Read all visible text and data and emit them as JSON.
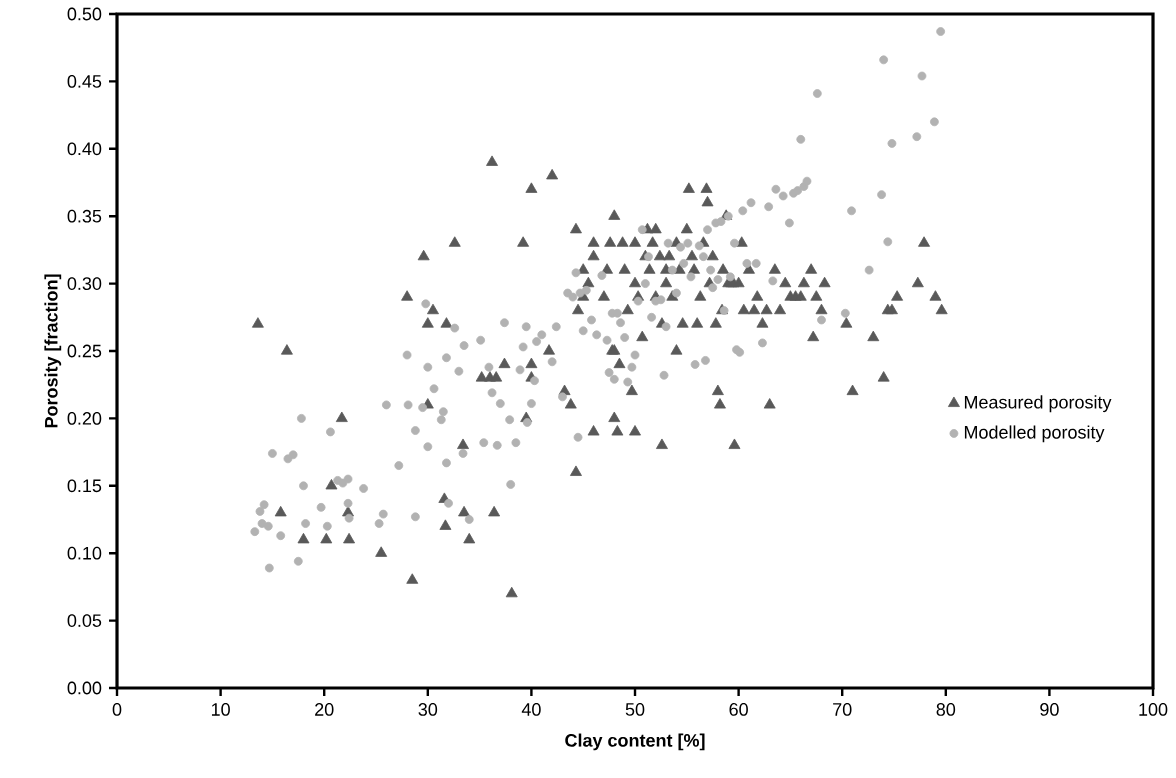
{
  "chart_data": {
    "type": "scatter",
    "xlabel": "Clay content [%]",
    "ylabel": "Porosity [fraction]",
    "xlim": [
      0,
      100
    ],
    "xticks": [
      0,
      10,
      20,
      30,
      40,
      50,
      60,
      70,
      80,
      90,
      100
    ],
    "ylim": [
      0,
      0.5
    ],
    "yticks": [
      {
        "value": 0,
        "label": "0.00"
      },
      {
        "value": 0.05,
        "label": "0.05"
      },
      {
        "value": 0.1,
        "label": "0.10"
      },
      {
        "value": 0.15,
        "label": "0.15"
      },
      {
        "value": 0.2,
        "label": "0.20"
      },
      {
        "value": 0.25,
        "label": "0.25"
      },
      {
        "value": 0.3,
        "label": "0.30"
      },
      {
        "value": 0.35,
        "label": "0.35"
      },
      {
        "value": 0.4,
        "label": "0.40"
      },
      {
        "value": 0.45,
        "label": "0.45"
      },
      {
        "value": 0.5,
        "label": "0.50"
      }
    ],
    "grid": false,
    "legend": "right",
    "series": [
      {
        "name": "Measured porosity",
        "color": "#595959",
        "marker": "triangle",
        "x": [
          13.6,
          15.8,
          16.4,
          18,
          20.2,
          20.7,
          21.7,
          22.3,
          22.4,
          25.5,
          28,
          28.5,
          29.6,
          30,
          30,
          30.5,
          31.6,
          31.7,
          31.8,
          32.6,
          33.4,
          33.5,
          34,
          35.2,
          36,
          36.2,
          36.4,
          36.6,
          37.4,
          38.1,
          39.2,
          39.5,
          40,
          40,
          40,
          42,
          41.7,
          43.2,
          43.8,
          44.3,
          44.3,
          44.5,
          45,
          45,
          45.5,
          46,
          46,
          46,
          47,
          47.3,
          47.6,
          47.8,
          48,
          48,
          48,
          48.3,
          48.5,
          48.8,
          49,
          49.3,
          49.7,
          50,
          50,
          50,
          50.3,
          50.7,
          51,
          51.2,
          51.4,
          51.7,
          52,
          52,
          52.4,
          52.6,
          52.6,
          53,
          53,
          53.3,
          53.6,
          54,
          54,
          54.3,
          54.6,
          55,
          55.2,
          55.5,
          55.7,
          56,
          56.3,
          56.6,
          56.9,
          57,
          57.2,
          57.5,
          57.8,
          58,
          58.2,
          58.4,
          58.5,
          58.8,
          59,
          59.3,
          59.5,
          59.6,
          60,
          60.3,
          60.5,
          61,
          61.5,
          61.8,
          62.3,
          62.7,
          63,
          63.5,
          64,
          64.5,
          65,
          65.5,
          66,
          66.3,
          67,
          67.2,
          67.5,
          68,
          68.3,
          70.4,
          71,
          73,
          74,
          74.4,
          74.8,
          75.3,
          77.3,
          77.9,
          79,
          79.6
        ],
        "values": [
          0.27,
          0.13,
          0.25,
          0.11,
          0.11,
          0.15,
          0.2,
          0.13,
          0.11,
          0.1,
          0.29,
          0.08,
          0.32,
          0.27,
          0.21,
          0.28,
          0.14,
          0.12,
          0.27,
          0.33,
          0.18,
          0.13,
          0.11,
          0.23,
          0.23,
          0.39,
          0.13,
          0.23,
          0.24,
          0.07,
          0.33,
          0.2,
          0.37,
          0.23,
          0.24,
          0.38,
          0.25,
          0.22,
          0.21,
          0.34,
          0.16,
          0.28,
          0.31,
          0.29,
          0.3,
          0.19,
          0.32,
          0.33,
          0.29,
          0.31,
          0.33,
          0.25,
          0.35,
          0.2,
          0.25,
          0.19,
          0.24,
          0.33,
          0.31,
          0.28,
          0.22,
          0.19,
          0.33,
          0.3,
          0.29,
          0.26,
          0.32,
          0.34,
          0.31,
          0.33,
          0.29,
          0.34,
          0.32,
          0.27,
          0.18,
          0.31,
          0.3,
          0.32,
          0.29,
          0.33,
          0.25,
          0.31,
          0.27,
          0.34,
          0.37,
          0.32,
          0.31,
          0.27,
          0.29,
          0.33,
          0.37,
          0.36,
          0.3,
          0.32,
          0.27,
          0.22,
          0.21,
          0.28,
          0.31,
          0.35,
          0.3,
          0.3,
          0.3,
          0.18,
          0.3,
          0.33,
          0.28,
          0.31,
          0.28,
          0.29,
          0.27,
          0.28,
          0.21,
          0.31,
          0.28,
          0.3,
          0.29,
          0.29,
          0.29,
          0.3,
          0.31,
          0.26,
          0.29,
          0.28,
          0.3,
          0.27,
          0.22,
          0.26,
          0.23,
          0.28,
          0.28,
          0.29,
          0.3,
          0.33,
          0.29,
          0.28
        ]
      },
      {
        "name": "Modelled porosity",
        "color": "#b2b2b2",
        "marker": "circle",
        "x": [
          13.3,
          13.8,
          14,
          14.2,
          14.6,
          14.7,
          15,
          15.8,
          16.5,
          17,
          17.5,
          17.8,
          18,
          18.2,
          19.7,
          20.3,
          20.6,
          21.3,
          21.8,
          22.3,
          22.3,
          22.4,
          23.8,
          25.3,
          25.7,
          26,
          27.2,
          28,
          28.1,
          28.8,
          28.8,
          29.5,
          29.8,
          30,
          30,
          30.6,
          31.3,
          31.5,
          31.8,
          31.8,
          32,
          32.6,
          33,
          33.4,
          33.5,
          34,
          35.1,
          35.4,
          35.9,
          36.2,
          36.7,
          37,
          37.4,
          37.9,
          38,
          38.5,
          38.9,
          39.2,
          39.5,
          39.6,
          40,
          40.3,
          40.5,
          41,
          42,
          42.4,
          43,
          43.5,
          44,
          44.3,
          44.5,
          44.7,
          45,
          45.3,
          45.8,
          46.3,
          46.8,
          47.3,
          47.5,
          47.8,
          48,
          48.3,
          48.6,
          49,
          49.3,
          49.7,
          50,
          50.3,
          50.7,
          51,
          51.3,
          51.6,
          52,
          52.5,
          52.8,
          53,
          53.2,
          53.6,
          54,
          54.4,
          54.7,
          55.1,
          55.4,
          55.8,
          56.2,
          56.6,
          56.8,
          57,
          57.3,
          57.5,
          57.8,
          58,
          58.3,
          58.6,
          59,
          59.2,
          59.6,
          59.8,
          60.1,
          60.4,
          60.8,
          61.2,
          61.7,
          62.3,
          62.9,
          63.3,
          63.6,
          64.3,
          64.9,
          65.3,
          65.7,
          66,
          66.3,
          66.6,
          67.6,
          68,
          70.3,
          70.9,
          72.6,
          73.8,
          74,
          74.4,
          74.8,
          77.2,
          77.7,
          78.9,
          79.5
        ],
        "values": [
          0.116,
          0.131,
          0.122,
          0.136,
          0.12,
          0.089,
          0.174,
          0.113,
          0.17,
          0.173,
          0.094,
          0.2,
          0.15,
          0.122,
          0.134,
          0.12,
          0.19,
          0.154,
          0.152,
          0.155,
          0.137,
          0.126,
          0.148,
          0.122,
          0.129,
          0.21,
          0.165,
          0.247,
          0.21,
          0.191,
          0.127,
          0.208,
          0.285,
          0.238,
          0.179,
          0.222,
          0.199,
          0.205,
          0.167,
          0.245,
          0.137,
          0.267,
          0.235,
          0.174,
          0.254,
          0.125,
          0.258,
          0.182,
          0.238,
          0.219,
          0.18,
          0.211,
          0.271,
          0.199,
          0.151,
          0.182,
          0.236,
          0.253,
          0.268,
          0.197,
          0.211,
          0.228,
          0.257,
          0.262,
          0.242,
          0.268,
          0.216,
          0.293,
          0.29,
          0.308,
          0.186,
          0.293,
          0.265,
          0.295,
          0.273,
          0.262,
          0.306,
          0.258,
          0.234,
          0.278,
          0.229,
          0.278,
          0.271,
          0.26,
          0.227,
          0.238,
          0.247,
          0.287,
          0.34,
          0.3,
          0.32,
          0.275,
          0.287,
          0.288,
          0.232,
          0.268,
          0.33,
          0.31,
          0.293,
          0.327,
          0.315,
          0.33,
          0.305,
          0.24,
          0.328,
          0.32,
          0.243,
          0.34,
          0.31,
          0.297,
          0.345,
          0.303,
          0.346,
          0.28,
          0.35,
          0.305,
          0.33,
          0.251,
          0.249,
          0.354,
          0.315,
          0.36,
          0.315,
          0.256,
          0.357,
          0.302,
          0.37,
          0.365,
          0.345,
          0.367,
          0.369,
          0.407,
          0.372,
          0.376,
          0.441,
          0.273,
          0.278,
          0.354,
          0.31,
          0.366,
          0.466,
          0.331,
          0.404,
          0.409,
          0.454,
          0.42,
          0.487
        ]
      }
    ]
  }
}
